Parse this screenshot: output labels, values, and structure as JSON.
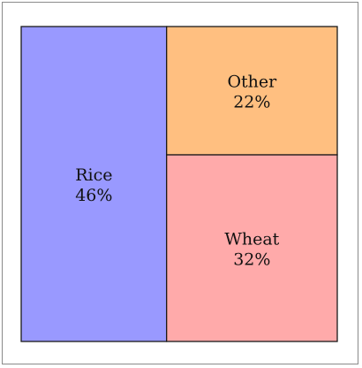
{
  "chart_data": {
    "type": "treemap",
    "items": [
      {
        "label": "Rice",
        "value": 46,
        "value_label": "46%",
        "color": "#9999ff"
      },
      {
        "label": "Other",
        "value": 22,
        "value_label": "22%",
        "color": "#ffbf80"
      },
      {
        "label": "Wheat",
        "value": 32,
        "value_label": "32%",
        "color": "#ffaaaa"
      }
    ],
    "border_color": "#1a1a1a"
  }
}
